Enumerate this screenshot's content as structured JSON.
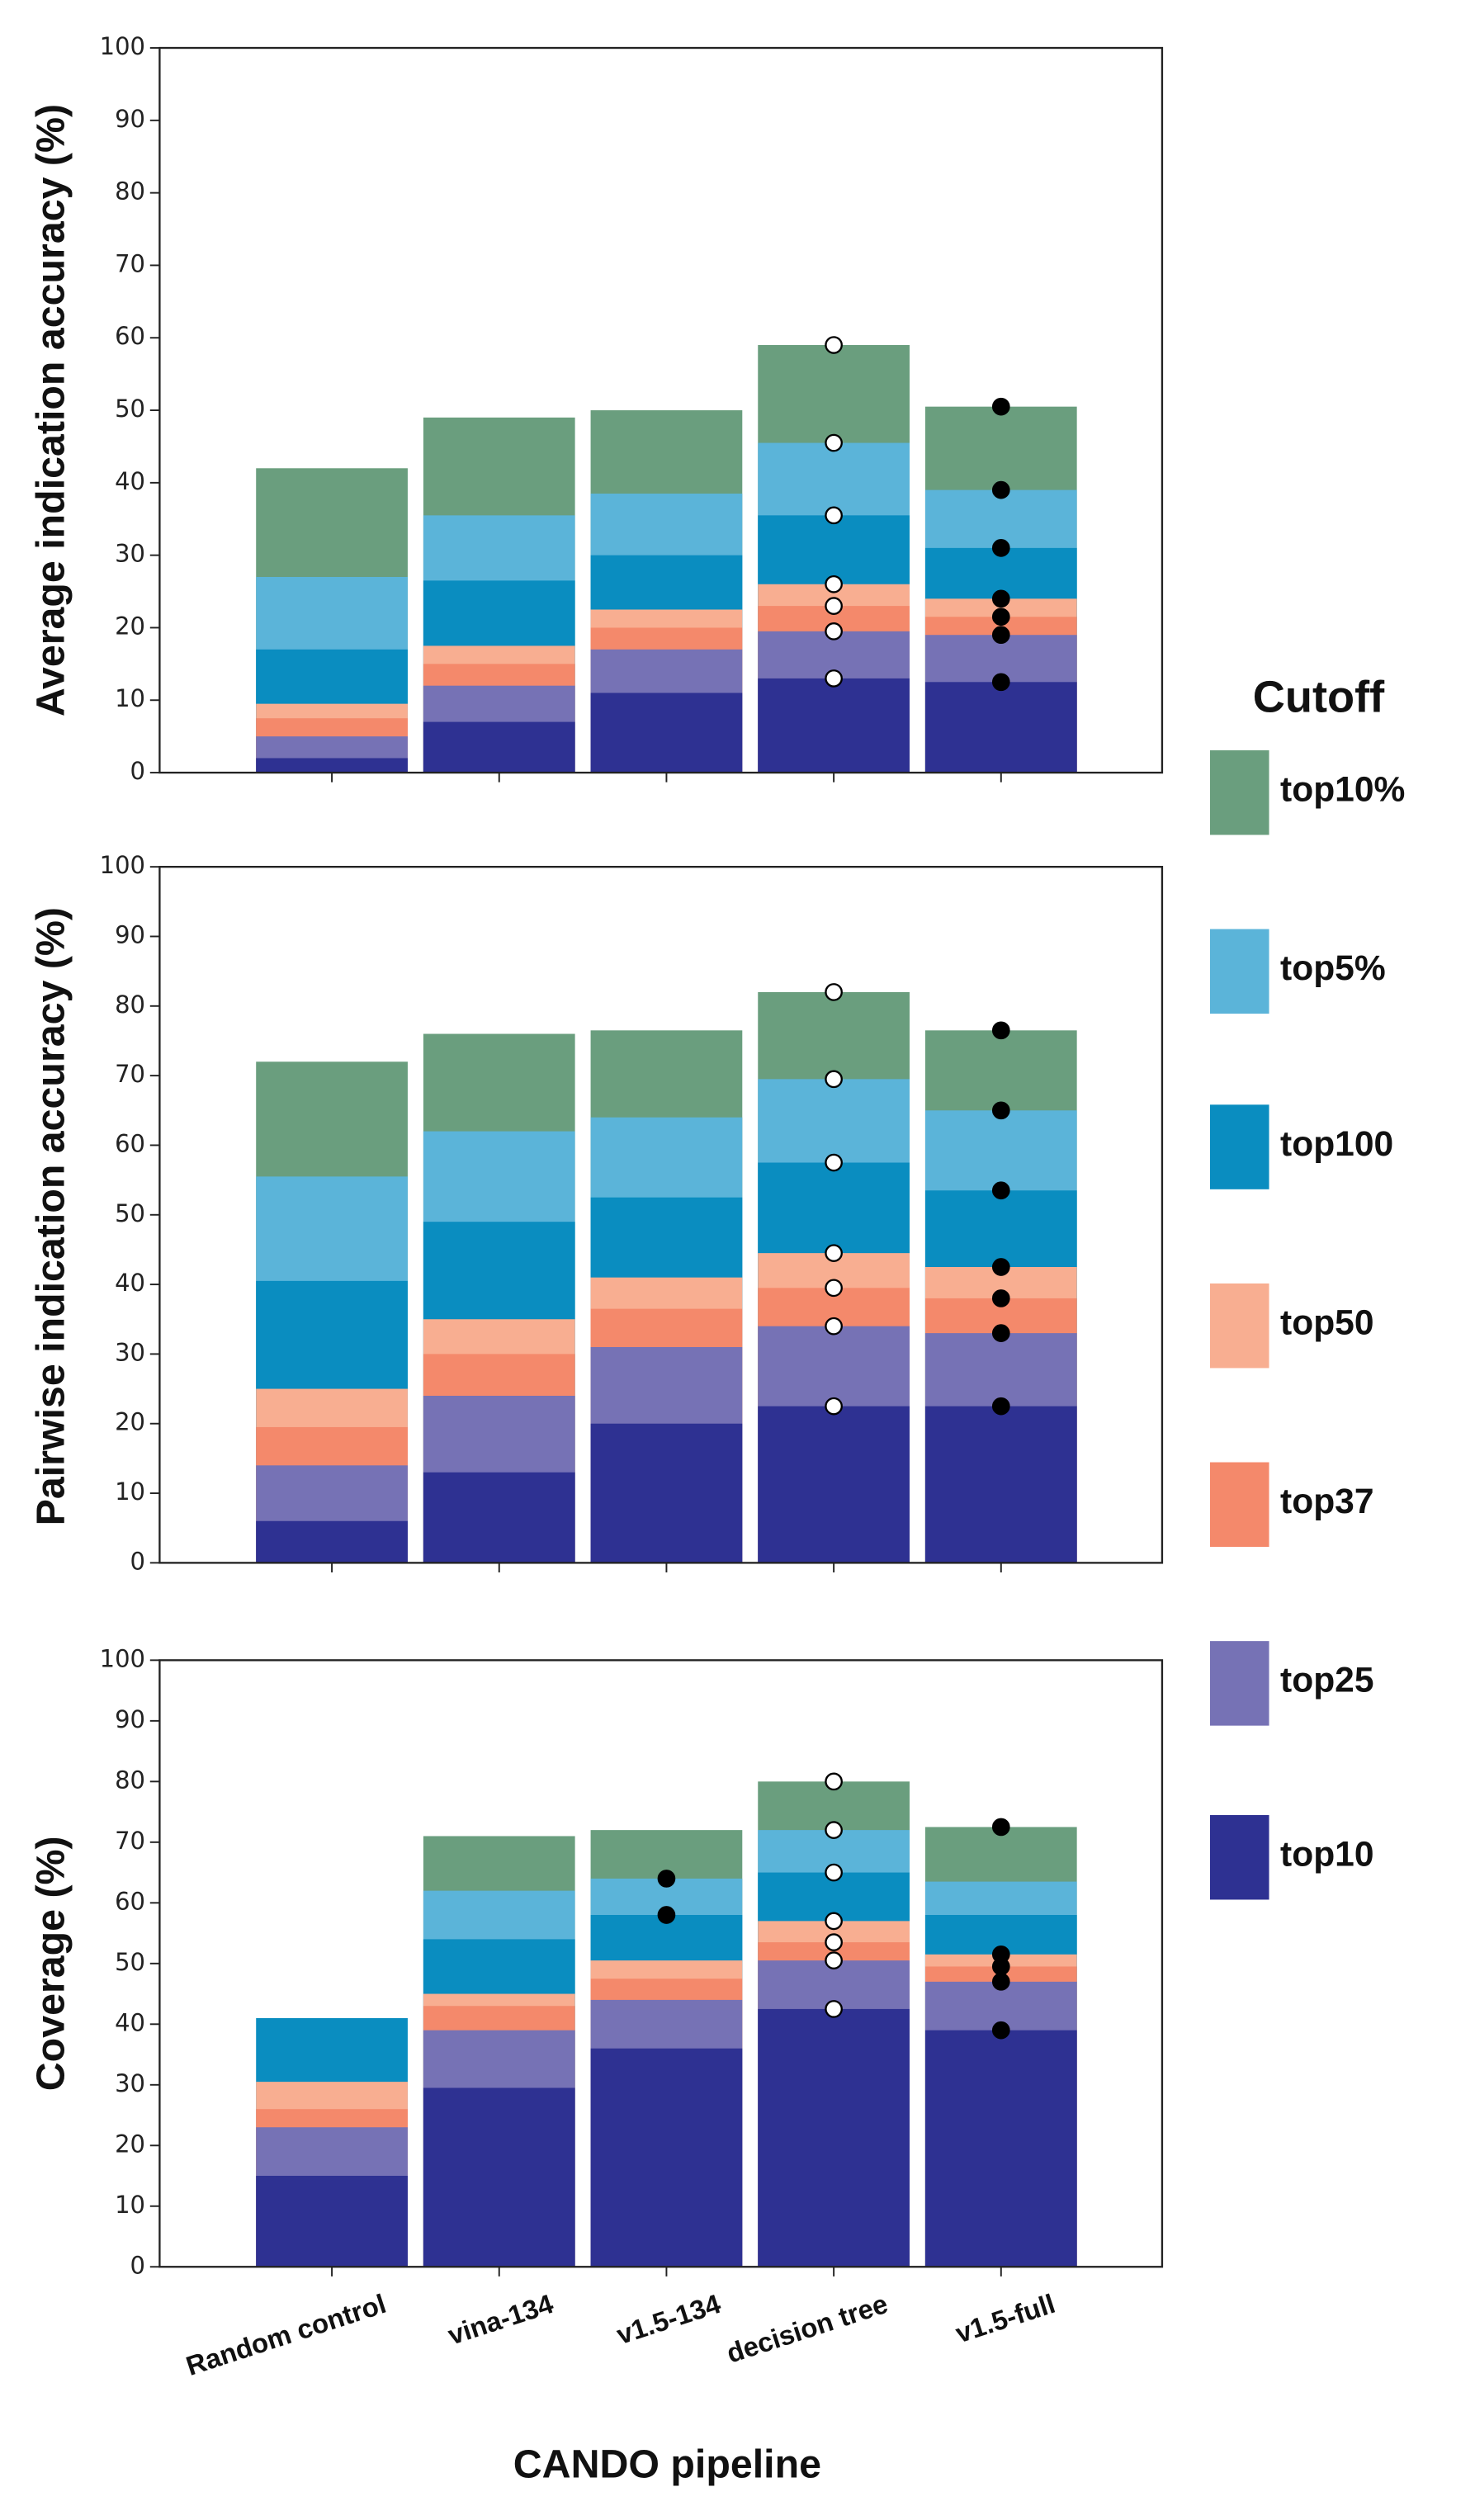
{
  "chart_data": [
    {
      "type": "bar",
      "y_label": "Average indication accuracy (%)",
      "categories": [
        "Random control",
        "vina-134",
        "v1.5-134",
        "decision tree",
        "v1.5-full"
      ],
      "ylim": [
        0,
        100
      ],
      "yticks": [
        0,
        10,
        20,
        30,
        40,
        50,
        60,
        70,
        80,
        90,
        100
      ],
      "legend_title": "Cutoff",
      "series": [
        {
          "name": "top10%",
          "color": "#6a9e7e",
          "values": [
            42,
            49,
            50,
            59,
            50.5
          ]
        },
        {
          "name": "top5%",
          "color": "#5bb4d9",
          "values": [
            27,
            35.5,
            38.5,
            45.5,
            39
          ]
        },
        {
          "name": "top100",
          "color": "#0a8dc0",
          "values": [
            17,
            26.5,
            30,
            35.5,
            31
          ]
        },
        {
          "name": "top50",
          "color": "#f8ae91",
          "values": [
            9.5,
            17.5,
            22.5,
            26,
            24
          ]
        },
        {
          "name": "top37",
          "color": "#f4896b",
          "values": [
            7.5,
            15,
            20,
            23,
            21.5
          ]
        },
        {
          "name": "top25",
          "color": "#7672b5",
          "values": [
            5,
            12,
            17,
            19.5,
            19
          ]
        },
        {
          "name": "top10",
          "color": "#2e3192",
          "values": [
            2,
            7,
            11,
            13,
            12.5
          ]
        }
      ],
      "markers": [
        {
          "category": 3,
          "fill": "#ffffff",
          "series": [
            0,
            1,
            2,
            3,
            4,
            5,
            6
          ]
        },
        {
          "category": 4,
          "fill": "#000000",
          "series": [
            0,
            1,
            2,
            3,
            4,
            5,
            6
          ]
        }
      ]
    },
    {
      "type": "bar",
      "y_label": "Pairwise indication accuracy (%)",
      "categories": [
        "Random control",
        "vina-134",
        "v1.5-134",
        "decision tree",
        "v1.5-full"
      ],
      "ylim": [
        0,
        100
      ],
      "yticks": [
        0,
        10,
        20,
        30,
        40,
        50,
        60,
        70,
        80,
        90,
        100
      ],
      "series": [
        {
          "name": "top10%",
          "color": "#6a9e7e",
          "values": [
            72,
            76,
            76.5,
            82,
            76.5
          ]
        },
        {
          "name": "top5%",
          "color": "#5bb4d9",
          "values": [
            55.5,
            62,
            64,
            69.5,
            65
          ]
        },
        {
          "name": "top100",
          "color": "#0a8dc0",
          "values": [
            40.5,
            49,
            52.5,
            57.5,
            53.5
          ]
        },
        {
          "name": "top50",
          "color": "#f8ae91",
          "values": [
            25,
            35,
            41,
            44.5,
            42.5
          ]
        },
        {
          "name": "top37",
          "color": "#f4896b",
          "values": [
            19.5,
            30,
            36.5,
            39.5,
            38
          ]
        },
        {
          "name": "top25",
          "color": "#7672b5",
          "values": [
            14,
            24,
            31,
            34,
            33
          ]
        },
        {
          "name": "top10",
          "color": "#2e3192",
          "values": [
            6,
            13,
            20,
            22.5,
            22.5
          ]
        }
      ],
      "markers": [
        {
          "category": 3,
          "fill": "#ffffff",
          "series": [
            0,
            1,
            2,
            3,
            4,
            5,
            6
          ]
        },
        {
          "category": 4,
          "fill": "#000000",
          "series": [
            0,
            1,
            2,
            3,
            4,
            5,
            6
          ]
        }
      ]
    },
    {
      "type": "bar",
      "y_label": "Coverage (%)",
      "x_label": "CANDO pipeline",
      "categories": [
        "Random control",
        "vina-134",
        "v1.5-134",
        "decision tree",
        "v1.5-full"
      ],
      "ylim": [
        0,
        100
      ],
      "yticks": [
        0,
        10,
        20,
        30,
        40,
        50,
        60,
        70,
        80,
        90,
        100
      ],
      "series": [
        {
          "name": "top10%",
          "color": "#6a9e7e",
          "values": [
            null,
            71,
            72,
            80,
            72.5
          ]
        },
        {
          "name": "top5%",
          "color": "#5bb4d9",
          "values": [
            null,
            62,
            64,
            72,
            63.5
          ]
        },
        {
          "name": "top100",
          "color": "#0a8dc0",
          "values": [
            41,
            54,
            58,
            65,
            58
          ]
        },
        {
          "name": "top50",
          "color": "#f8ae91",
          "values": [
            30.5,
            45,
            50.5,
            57,
            51.5
          ]
        },
        {
          "name": "top37",
          "color": "#f4896b",
          "values": [
            26,
            43,
            47.5,
            53.5,
            49.5
          ]
        },
        {
          "name": "top25",
          "color": "#7672b5",
          "values": [
            23,
            39,
            44,
            50.5,
            47
          ]
        },
        {
          "name": "top10",
          "color": "#2e3192",
          "values": [
            15,
            29.5,
            36,
            42.5,
            39
          ]
        }
      ],
      "markers": [
        {
          "category": 2,
          "fill": "#000000",
          "series": [
            1,
            2
          ]
        },
        {
          "category": 3,
          "fill": "#ffffff",
          "series": [
            0,
            1,
            2,
            3,
            4,
            5,
            6
          ]
        },
        {
          "category": 4,
          "fill": "#000000",
          "series": [
            0,
            3,
            4,
            5,
            6
          ]
        }
      ]
    }
  ]
}
